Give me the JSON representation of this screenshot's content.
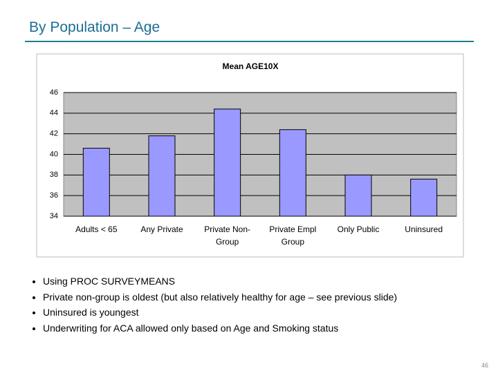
{
  "title": "By Population – Age",
  "chart_data": {
    "type": "bar",
    "title": "Mean AGE10X",
    "categories": [
      "Adults < 65",
      "Any Private",
      "Private Non-Group",
      "Private Empl Group",
      "Only Public",
      "Uninsured"
    ],
    "values": [
      40.6,
      41.8,
      44.4,
      42.4,
      38.0,
      37.6
    ],
    "color": "#9999ff",
    "ylim": [
      34,
      46
    ],
    "yticks": [
      34,
      36,
      38,
      40,
      42,
      44,
      46
    ],
    "grid": true
  },
  "bullets": [
    "Using PROC SURVEYMEANS",
    "Private non-group is oldest (but also relatively healthy for age – see previous slide)",
    "Uninsured is youngest",
    "Underwriting for ACA allowed only based on Age and Smoking status"
  ],
  "page_number": "46"
}
